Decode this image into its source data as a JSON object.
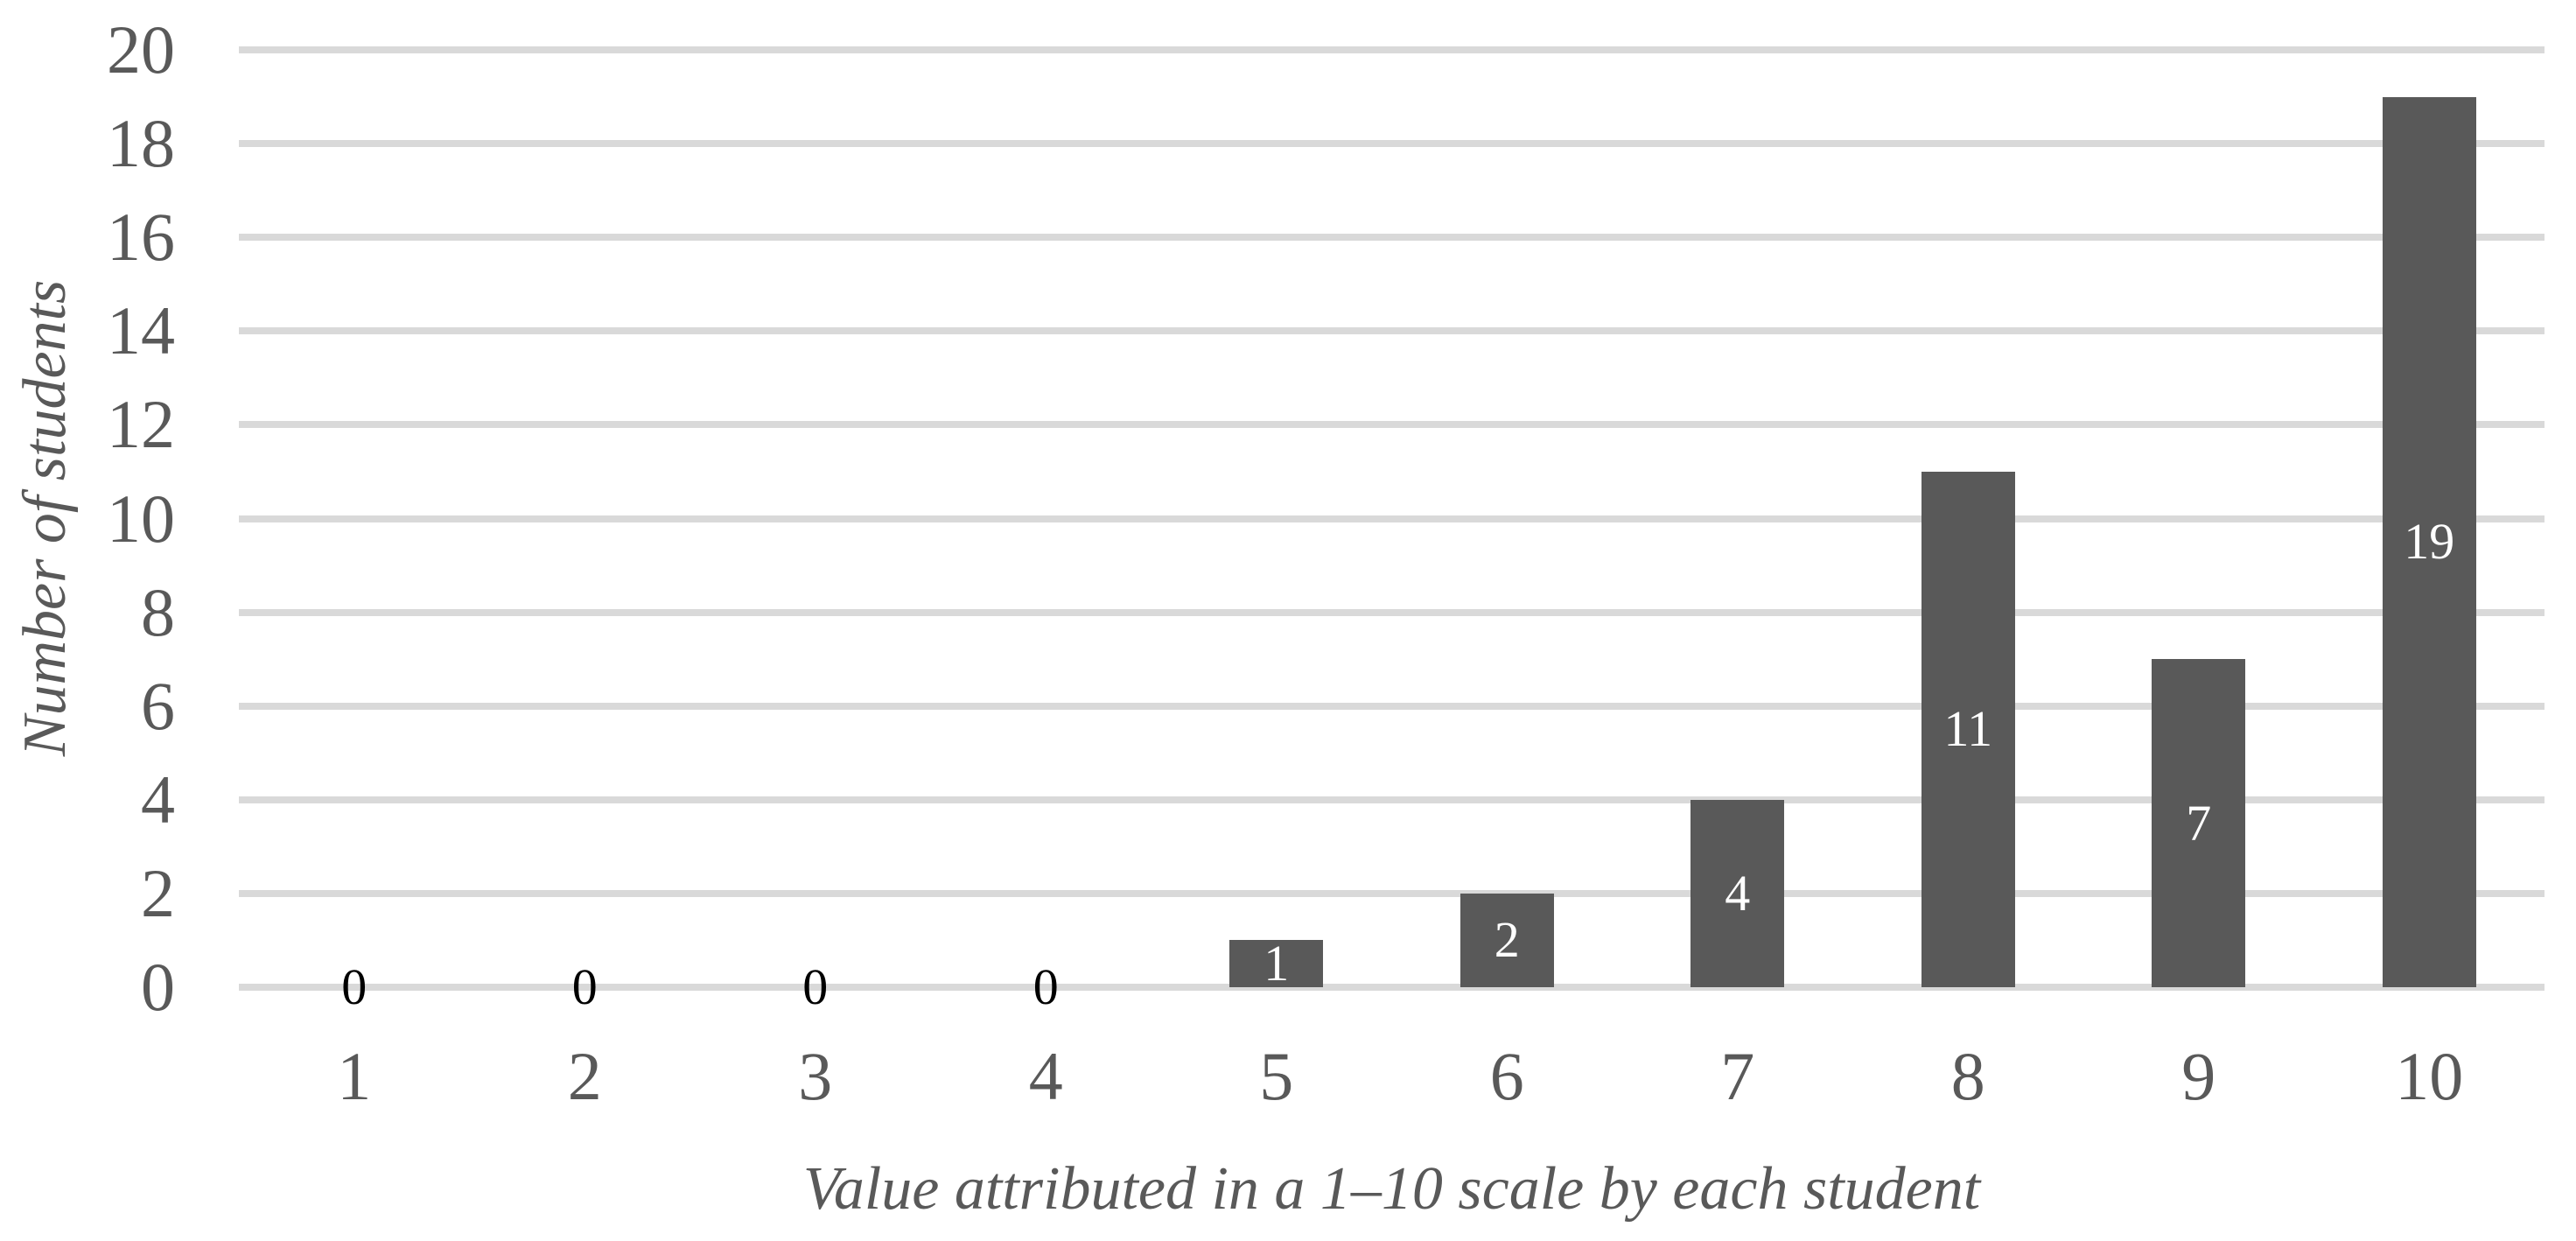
{
  "chart_data": {
    "type": "bar",
    "categories": [
      "1",
      "2",
      "3",
      "4",
      "5",
      "6",
      "7",
      "8",
      "9",
      "10"
    ],
    "values": [
      0,
      0,
      0,
      0,
      1,
      2,
      4,
      11,
      7,
      19
    ],
    "xlabel": "Value attributed in a 1–10 scale by each student",
    "ylabel": "Number of students",
    "ylim": [
      0,
      20
    ],
    "ytick_values": [
      0,
      2,
      4,
      6,
      8,
      10,
      12,
      14,
      16,
      18,
      20
    ],
    "grid": "horizontal-only",
    "legend": "none",
    "data_labels": {
      "position": "inside-center",
      "inside_color": "#ffffff",
      "zero_value_color": "#000000"
    },
    "colors": {
      "bar": "#595959",
      "gridline": "#d9d9d9",
      "axis_text": "#595959",
      "title_text": "#595959",
      "background": "#ffffff"
    }
  }
}
